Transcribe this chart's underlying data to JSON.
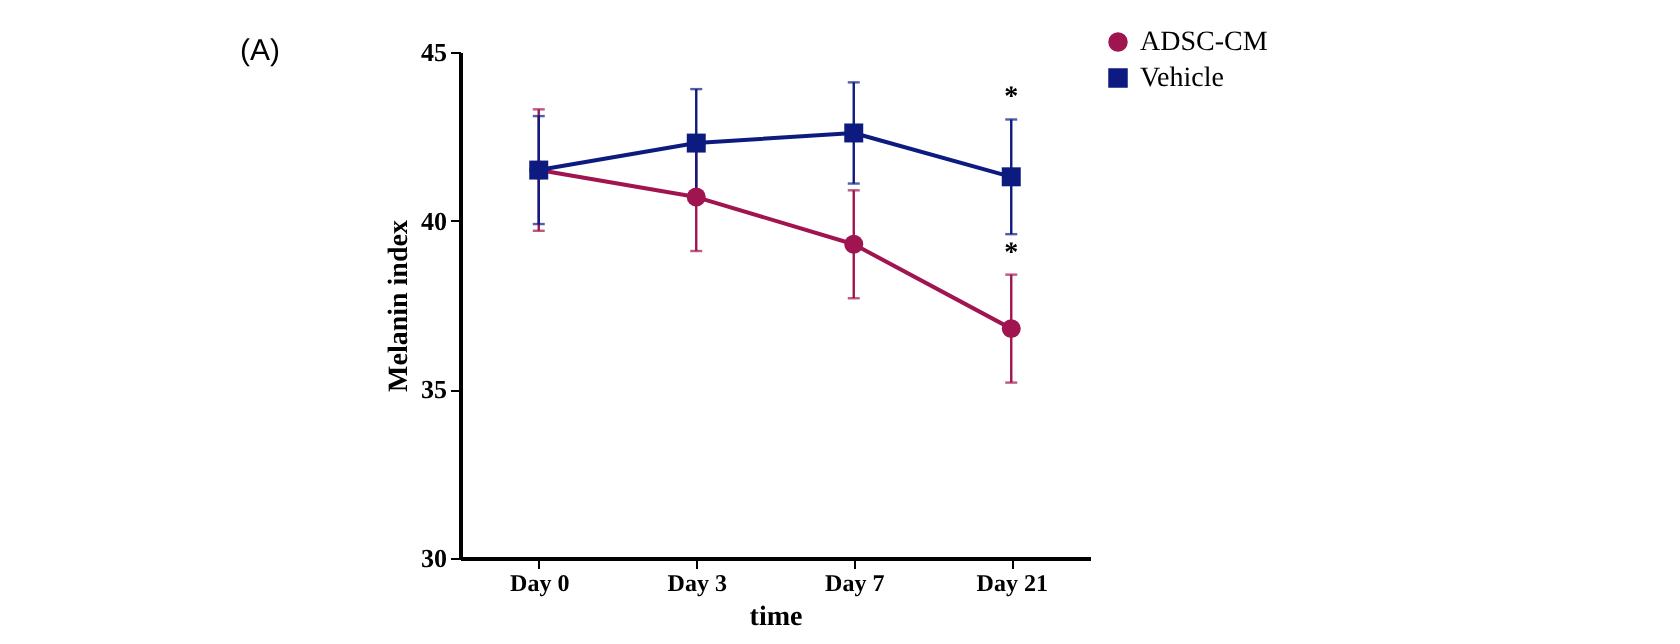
{
  "chart_data": {
    "type": "line",
    "xlabel": "time",
    "ylabel": "Melanin index",
    "categories": [
      "Day 0",
      "Day 3",
      "Day 7",
      "Day 21"
    ],
    "series": [
      {
        "name": "ADSC-CM",
        "color": "#a0144f",
        "marker": "circle",
        "values": [
          41.5,
          40.7,
          39.3,
          36.8
        ],
        "errors": [
          1.8,
          1.6,
          1.6,
          1.6
        ]
      },
      {
        "name": "Vehicle",
        "color": "#0d1a80",
        "marker": "square",
        "values": [
          41.5,
          42.3,
          42.6,
          41.3
        ],
        "errors": [
          1.6,
          1.6,
          1.5,
          1.7
        ]
      }
    ],
    "ylim": [
      30,
      45
    ],
    "yticks": [
      30,
      35,
      40,
      45
    ],
    "grid": false,
    "legend": "top right",
    "line_style": "solid",
    "annotations": [
      "(A)",
      "*",
      "*"
    ]
  }
}
